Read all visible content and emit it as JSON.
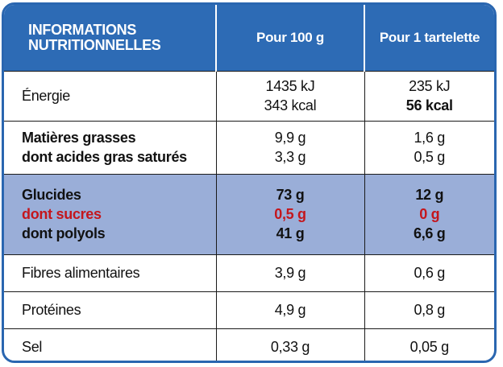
{
  "header": {
    "title_line1": "INFORMATIONS",
    "title_line2": "NUTRITIONNELLES",
    "col_100g": "Pour 100 g",
    "col_tartelette": "Pour 1 tartelette"
  },
  "rows": {
    "energie": {
      "label": "Énergie",
      "v100_kj": "1435 kJ",
      "v100_kcal": "343 kcal",
      "vt_kj": "235 kJ",
      "vt_kcal": "56 kcal"
    },
    "matieres": {
      "label": "Matières grasses",
      "v100": "9,9 g",
      "vt": "1,6 g"
    },
    "satures": {
      "label": "dont acides gras saturés",
      "v100": "3,3 g",
      "vt": "0,5 g"
    },
    "glucides": {
      "label": "Glucides",
      "v100": "73 g",
      "vt": "12 g"
    },
    "sucres": {
      "label": "dont sucres",
      "v100": "0,5 g",
      "vt": "0 g"
    },
    "polyols": {
      "label": "dont polyols",
      "v100": "41 g",
      "vt": "6,6 g"
    },
    "fibres": {
      "label": "Fibres alimentaires",
      "v100": "3,9 g",
      "vt": "0,6 g"
    },
    "proteines": {
      "label": "Protéines",
      "v100": "4,9 g",
      "vt": "0,8 g"
    },
    "sel": {
      "label": "Sel",
      "v100": "0,33 g",
      "vt": "0,05 g"
    }
  },
  "colors": {
    "header_bg": "#2d6bb5",
    "border": "#2a66b0",
    "highlight_bg": "#9aaed8",
    "sugar_red": "#c4161c"
  }
}
